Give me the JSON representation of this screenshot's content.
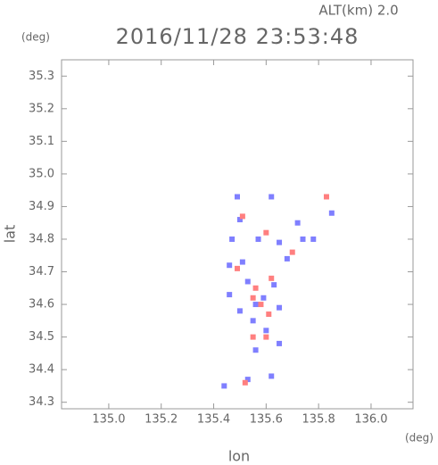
{
  "chart_data": {
    "type": "scatter",
    "title": "2016/11/28 23:53:48",
    "subtitle": "ALT(km)  2.0",
    "y_unit": "(deg)",
    "x_unit": "(deg)",
    "x_label": "lon",
    "y_label": "lat",
    "xlim": [
      134.82,
      136.16
    ],
    "ylim": [
      34.28,
      35.35
    ],
    "xticks": [
      {
        "value": 135.0,
        "label": "135.0"
      },
      135.2,
      135.4,
      135.6,
      135.8,
      {
        "value": 136.0,
        "label": "136.0"
      }
    ],
    "yticks": [
      34.3,
      34.4,
      34.5,
      34.6,
      34.7,
      34.8,
      34.9,
      {
        "value": 35.0,
        "label": "35.0"
      },
      35.1,
      35.2,
      35.3
    ],
    "series": [
      {
        "color": "#7f7fff",
        "x": [
          135.49,
          135.62,
          135.85,
          135.5,
          135.47,
          135.57,
          135.65,
          135.74,
          135.78,
          135.46,
          135.51,
          135.53,
          135.46,
          135.5,
          135.56,
          135.59,
          135.63,
          135.65,
          135.55,
          135.6,
          135.65,
          135.56,
          135.53,
          135.44,
          135.62,
          135.72,
          135.68
        ],
        "values": [
          34.93,
          34.93,
          34.88,
          34.86,
          34.8,
          34.8,
          34.79,
          34.8,
          34.8,
          34.72,
          34.73,
          34.67,
          34.63,
          34.58,
          34.6,
          34.62,
          34.66,
          34.59,
          34.55,
          34.52,
          34.48,
          34.46,
          34.37,
          34.35,
          34.38,
          34.85,
          34.74
        ]
      },
      {
        "color": "#ff7f7f",
        "x": [
          135.83,
          135.51,
          135.6,
          135.7,
          135.49,
          135.56,
          135.62,
          135.58,
          135.61,
          135.55,
          135.6,
          135.52,
          135.55
        ],
        "values": [
          34.93,
          34.87,
          34.82,
          34.76,
          34.71,
          34.65,
          34.68,
          34.6,
          34.57,
          34.5,
          34.5,
          34.36,
          34.62
        ]
      }
    ]
  }
}
